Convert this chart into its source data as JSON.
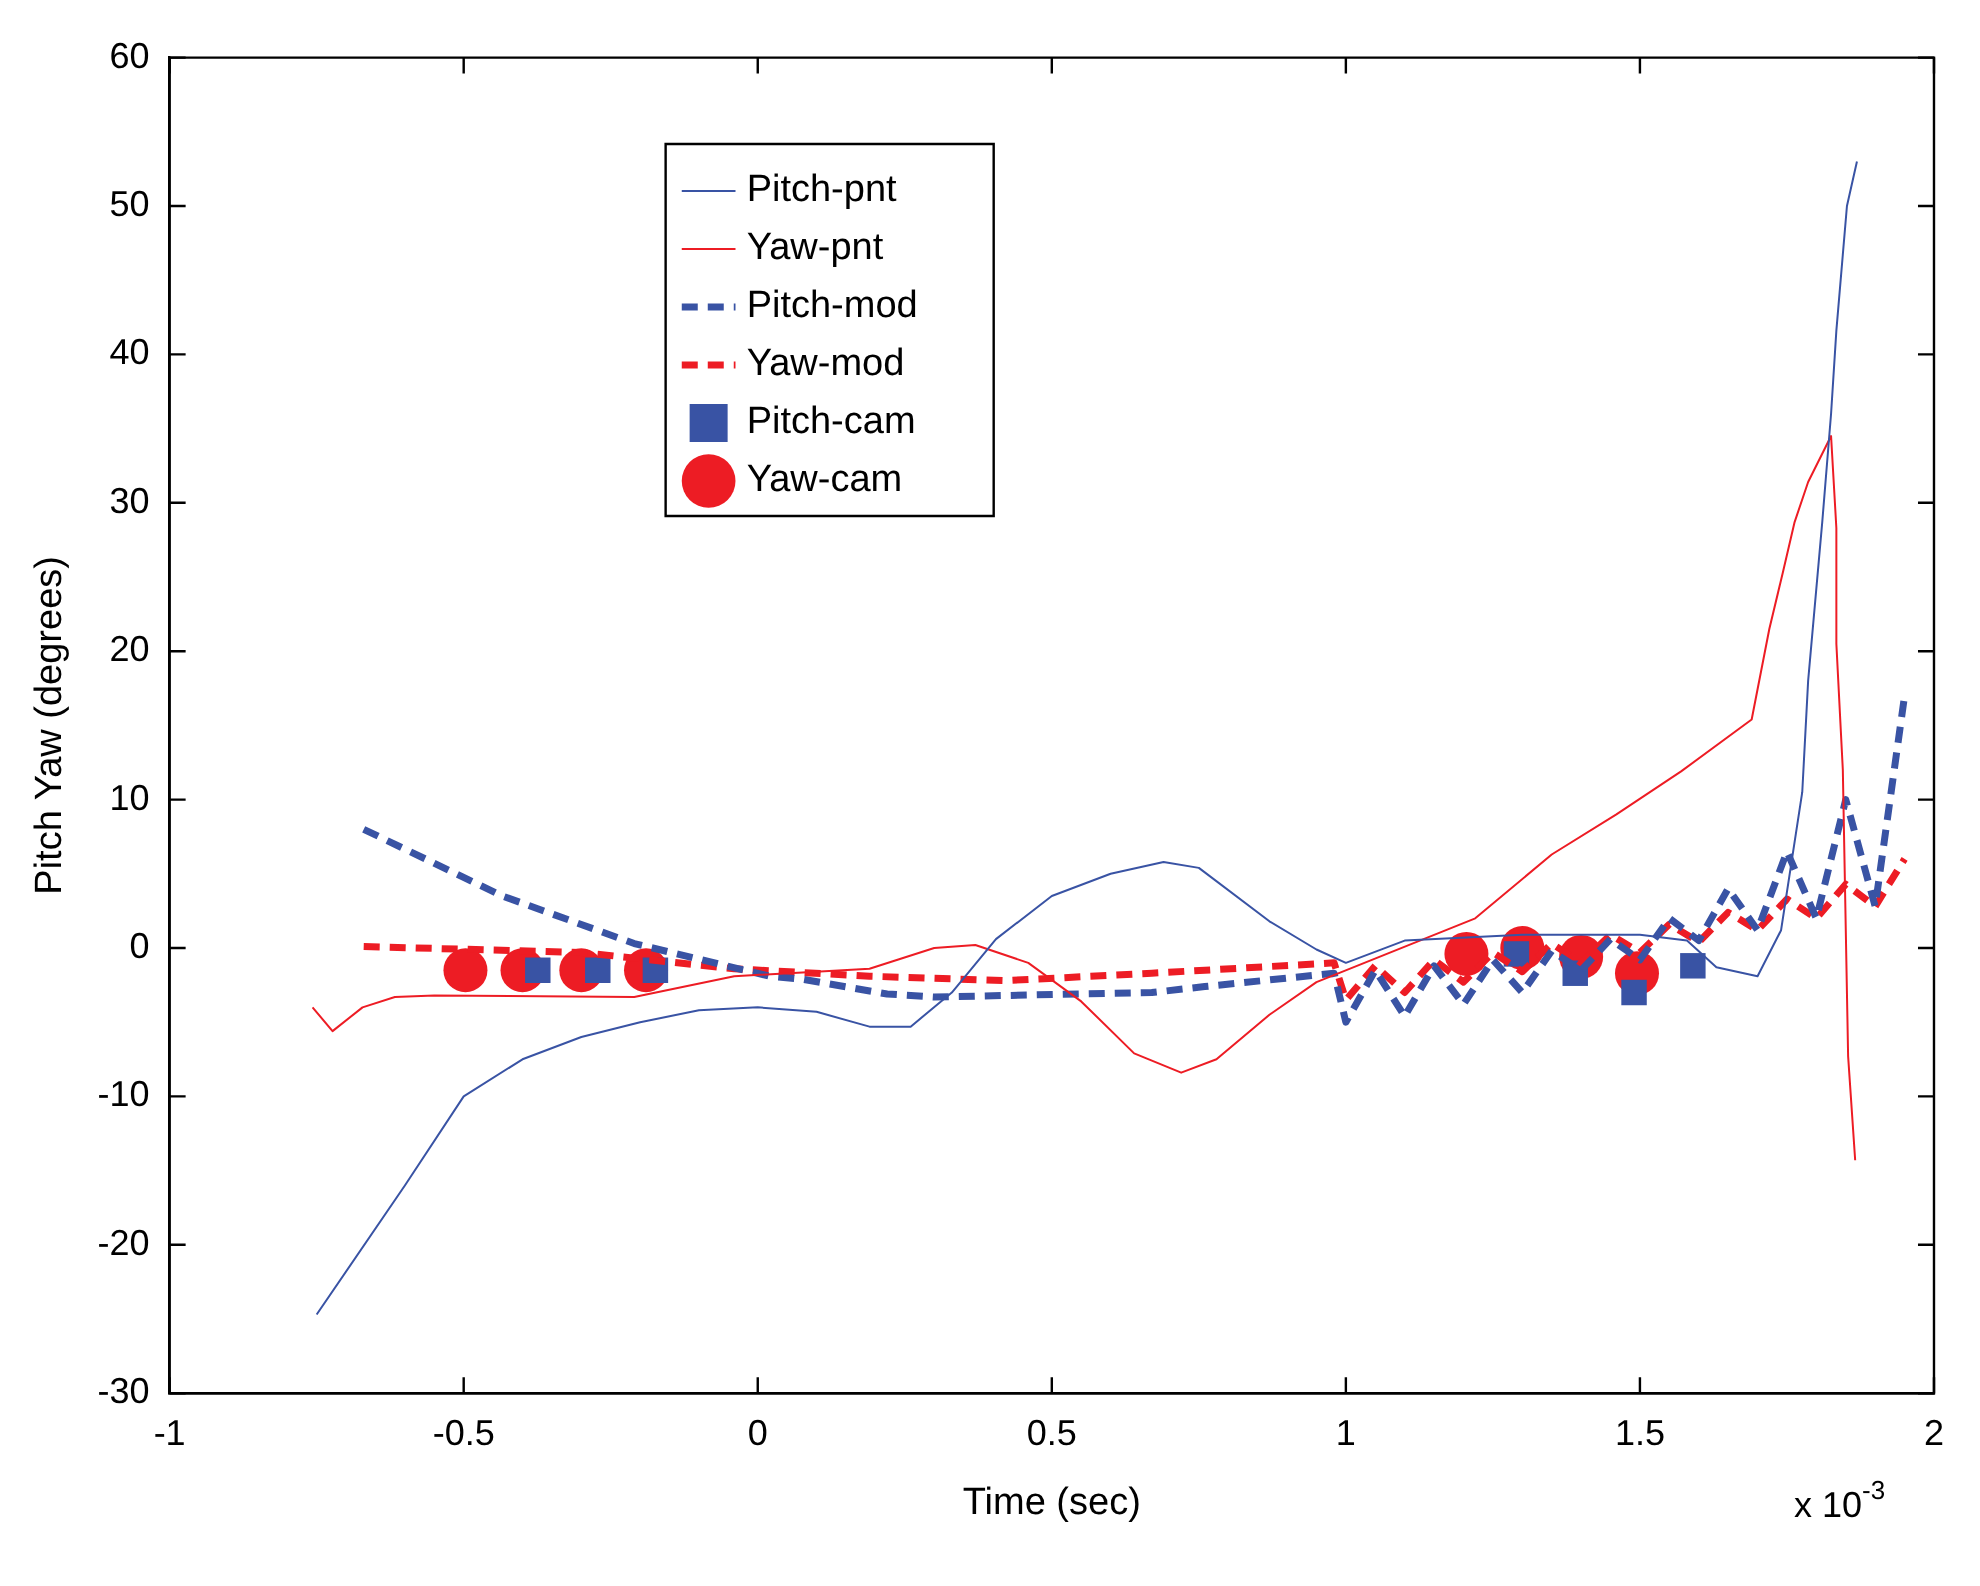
{
  "chart_data": {
    "type": "line",
    "xlabel": "Time (sec)",
    "ylabel": "Pitch Yaw (degrees)",
    "xlim": [
      -1,
      2
    ],
    "xticks": [
      -1,
      -0.5,
      0,
      0.5,
      1,
      1.5,
      2
    ],
    "ylim": [
      -30,
      60
    ],
    "yticks": [
      -30,
      -20,
      -10,
      0,
      10,
      20,
      30,
      40,
      50,
      60
    ],
    "grid": false,
    "legend": "top left",
    "annotations": [
      "x 10$^{-3}$"
    ],
    "series": [
      {
        "name": "Pitch-pnt",
        "type": "line",
        "color": "#3953a4",
        "line_style": "solid",
        "marker": "none",
        "x": [
          -0.75,
          -0.6,
          -0.5,
          -0.4,
          -0.3,
          -0.2,
          -0.1,
          0,
          0.1,
          0.19,
          0.26,
          0.33,
          0.405,
          0.5,
          0.6,
          0.69,
          0.75,
          0.87,
          0.95,
          1.0,
          1.1,
          1.3,
          1.5,
          1.58,
          1.63,
          1.7,
          1.74,
          1.776,
          1.786,
          1.81,
          1.825,
          1.834,
          1.852,
          1.869
        ],
        "values": [
          -24.7,
          -16,
          -10,
          -7.5,
          -6,
          -5,
          -4.2,
          -4,
          -4.3,
          -5.3,
          -5.3,
          -3,
          0.6,
          3.5,
          5,
          5.8,
          5.4,
          1.8,
          -0.1,
          -1,
          0.5,
          0.9,
          0.9,
          0.5,
          -1.3,
          -1.9,
          1.2,
          10.5,
          18,
          28.7,
          36,
          41.6,
          50,
          53
        ]
      },
      {
        "name": "Yaw-pnt",
        "type": "line",
        "color": "#ed1c24",
        "line_style": "solid",
        "marker": "none",
        "x": [
          -0.757,
          -0.723,
          -0.672,
          -0.617,
          -0.55,
          -0.21,
          -0.04,
          0.19,
          0.3,
          0.37,
          0.46,
          0.55,
          0.64,
          0.72,
          0.78,
          0.87,
          0.95,
          1.22,
          1.35,
          1.46,
          1.57,
          1.69,
          1.72,
          1.743,
          1.763,
          1.786,
          1.825,
          1.834,
          1.834,
          1.845,
          1.854,
          1.866
        ],
        "values": [
          -4,
          -5.6,
          -4,
          -3.3,
          -3.2,
          -3.3,
          -1.9,
          -1.4,
          0,
          0.2,
          -1,
          -3.6,
          -7.1,
          -8.4,
          -7.5,
          -4.5,
          -2.3,
          2,
          6.3,
          9,
          11.9,
          15.4,
          21.5,
          25.3,
          28.7,
          31.4,
          34.5,
          28.3,
          20.5,
          12,
          -7.3,
          -14.3
        ]
      },
      {
        "name": "Pitch-mod",
        "type": "line",
        "color": "#3953a4",
        "line_style": "dashed",
        "marker": "none",
        "x": [
          -0.67,
          -0.434,
          -0.21,
          0.02,
          0.075,
          0.22,
          0.3,
          0.67,
          0.76,
          0.98,
          1.0,
          1.05,
          1.1,
          1.15,
          1.2,
          1.25,
          1.3,
          1.35,
          1.4,
          1.45,
          1.5,
          1.55,
          1.6,
          1.65,
          1.7,
          1.75,
          1.8,
          1.85,
          1.9,
          1.95
        ],
        "values": [
          8,
          3.5,
          0.3,
          -1.9,
          -2.1,
          -3.1,
          -3.3,
          -3,
          -2.6,
          -1.7,
          -5,
          -1.5,
          -4.6,
          -1.2,
          -3.8,
          -0.8,
          -3,
          -0.2,
          -1.5,
          0.6,
          -0.8,
          2,
          0.5,
          4,
          1.2,
          6.5,
          2,
          10,
          2.8,
          17
        ]
      },
      {
        "name": "Yaw-mod",
        "type": "line",
        "color": "#ed1c24",
        "line_style": "dashed",
        "marker": "none",
        "x": [
          -0.67,
          -0.3,
          -0.04,
          0.19,
          0.42,
          0.67,
          0.98,
          1.0,
          1.05,
          1.1,
          1.15,
          1.2,
          1.25,
          1.3,
          1.35,
          1.4,
          1.45,
          1.5,
          1.55,
          1.6,
          1.65,
          1.7,
          1.75,
          1.8,
          1.85,
          1.9,
          1.95
        ],
        "values": [
          0.1,
          -0.3,
          -1.4,
          -1.9,
          -2.2,
          -1.7,
          -1,
          -3.5,
          -1.2,
          -3,
          -0.8,
          -2.3,
          -0.3,
          -1.6,
          0.3,
          -1,
          0.9,
          -0.3,
          1.6,
          0.4,
          2.4,
          1.2,
          3.3,
          2,
          4.3,
          2.8,
          6
        ]
      },
      {
        "name": "Pitch-cam",
        "type": "scatter",
        "color": "#3953a4",
        "marker": "square",
        "x": [
          -0.374,
          -0.272,
          -0.174,
          1.29,
          1.39,
          1.49,
          1.59
        ],
        "values": [
          -1.5,
          -1.5,
          -1.5,
          -0.4,
          -1.7,
          -3,
          -1.2
        ]
      },
      {
        "name": "Yaw-cam",
        "type": "scatter",
        "color": "#ed1c24",
        "marker": "circle",
        "x": [
          -0.497,
          -0.4,
          -0.3,
          -0.19,
          1.205,
          1.3,
          1.4,
          1.495
        ],
        "values": [
          -1.5,
          -1.5,
          -1.5,
          -1.5,
          -0.4,
          0,
          -0.6,
          -1.7
        ]
      }
    ]
  }
}
